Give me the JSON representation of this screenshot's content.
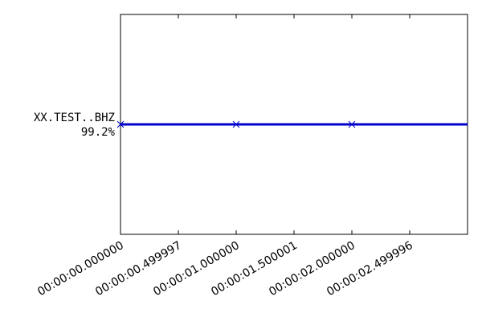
{
  "chart_data": {
    "type": "line",
    "title": "",
    "xlabel": "",
    "ylabel": "",
    "x_range": [
      0,
      3.0
    ],
    "x_ticks": [
      {
        "value": 0.0,
        "label": "00:00:00.000000"
      },
      {
        "value": 0.499997,
        "label": "00:00:00.499997"
      },
      {
        "value": 1.0,
        "label": "00:00:01.000000"
      },
      {
        "value": 1.500001,
        "label": "00:00:01.500001"
      },
      {
        "value": 2.0,
        "label": "00:00:02.000000"
      },
      {
        "value": 2.499996,
        "label": "00:00:02.499996"
      }
    ],
    "y_categories": [
      {
        "name": "XX.TEST..BHZ",
        "coverage": "99.2%"
      }
    ],
    "series": [
      {
        "name": "XX.TEST..BHZ",
        "color": "#0000cc",
        "segments": [
          [
            0.0,
            3.0
          ]
        ],
        "markers": [
          0.0,
          1.0,
          2.0
        ]
      }
    ],
    "grid": false,
    "legend": "none"
  }
}
